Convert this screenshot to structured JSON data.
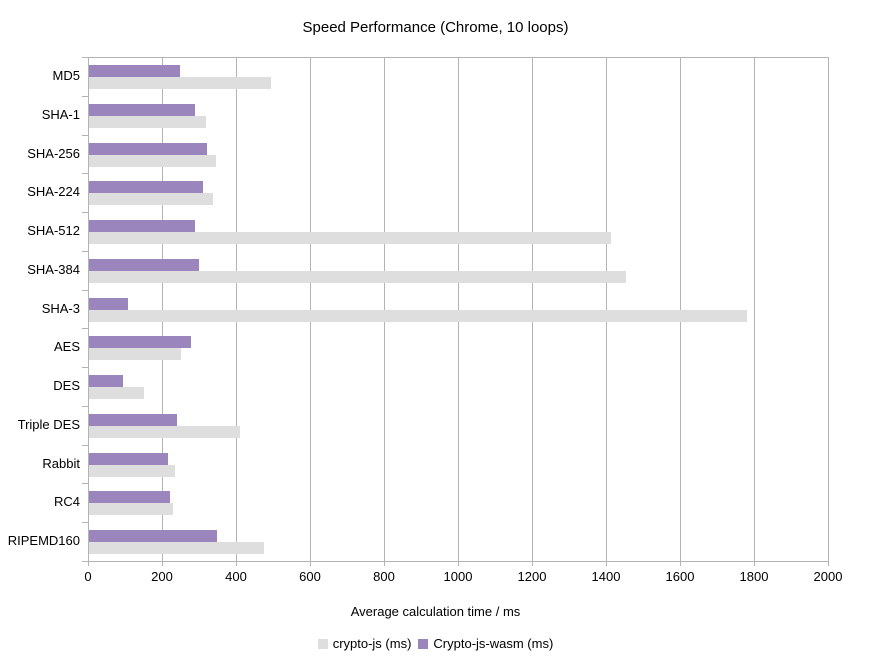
{
  "chart_data": {
    "type": "bar",
    "orientation": "horizontal",
    "title": "Speed Performance (Chrome, 10 loops)",
    "xlabel": "Average calculation time / ms",
    "categories": [
      "MD5",
      "SHA-1",
      "SHA-256",
      "SHA-224",
      "SHA-512",
      "SHA-384",
      "SHA-3",
      "AES",
      "DES",
      "Triple DES",
      "Rabbit",
      "RC4",
      "RIPEMD160"
    ],
    "series": [
      {
        "name": "crypto-js (ms)",
        "color": "#dedede",
        "values": [
          492,
          316,
          344,
          336,
          1412,
          1452,
          1778,
          249,
          148,
          407,
          233,
          227,
          472
        ]
      },
      {
        "name": "Crypto-js-wasm (ms)",
        "color": "#9a85bd",
        "values": [
          246,
          287,
          319,
          309,
          287,
          298,
          105,
          276,
          93,
          237,
          213,
          218,
          345
        ]
      }
    ],
    "xlim": [
      0,
      2000
    ],
    "xticks": [
      0,
      200,
      400,
      600,
      800,
      1000,
      1200,
      1400,
      1600,
      1800,
      2000
    ],
    "grid": "vertical",
    "legend_position": "bottom",
    "axis_color": "#b3b3b3",
    "text_color": "#000000"
  }
}
